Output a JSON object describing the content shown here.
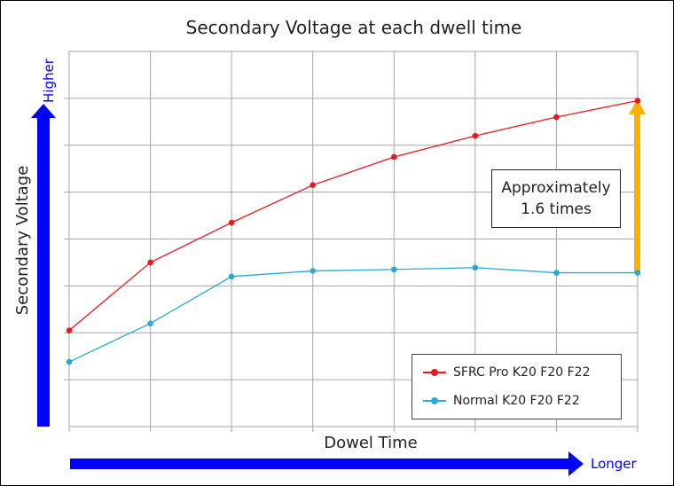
{
  "chart_data": {
    "type": "line",
    "title": "Secondary Voltage at each dwell time",
    "xlabel": "Dowel Time",
    "ylabel": "Secondary Voltage",
    "x_arrow_label": "Longer",
    "y_arrow_label": "Higher",
    "x": [
      1,
      2,
      3,
      4,
      5,
      6,
      7,
      8
    ],
    "ylim": [
      0,
      8
    ],
    "grid": true,
    "legend_position": "bottom-right",
    "series": [
      {
        "name": "SFRC Pro K20 F20 F22",
        "color": "#e8191c",
        "values": [
          2.05,
          3.5,
          4.35,
          5.15,
          5.75,
          6.2,
          6.6,
          6.95
        ]
      },
      {
        "name": "Normal K20 F20 F22",
        "color": "#29a9d9",
        "values": [
          1.38,
          2.2,
          3.2,
          3.32,
          3.35,
          3.39,
          3.28,
          3.28
        ]
      }
    ],
    "annotation": {
      "line1": "Approximately",
      "line2": "1.6 times"
    }
  },
  "colors": {
    "axis_arrow": "#0000ff",
    "gap_arrow": "#ffb000",
    "grid": "#a6a6a6"
  }
}
